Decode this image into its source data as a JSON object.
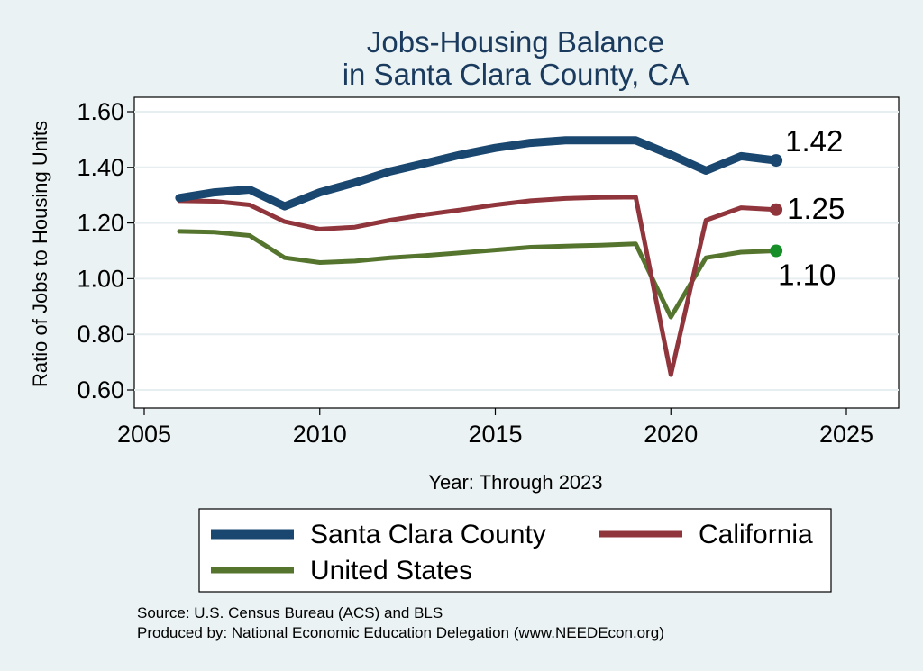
{
  "chart_data": {
    "type": "line",
    "title_lines": [
      "Jobs-Housing Balance",
      "in Santa Clara County, CA"
    ],
    "xlabel": "Year: Through 2023",
    "ylabel": "Ratio of Jobs to Housing Units",
    "xlim": [
      2005,
      2027
    ],
    "ylim": [
      0.55,
      1.65
    ],
    "xticks": [
      2005,
      2010,
      2015,
      2020,
      2025
    ],
    "yticks": [
      0.6,
      0.8,
      1.0,
      1.2,
      1.4,
      1.6
    ],
    "ytick_labels": [
      "0.60",
      "0.80",
      "1.00",
      "1.20",
      "1.40",
      "1.60"
    ],
    "grid": true,
    "x": [
      2006,
      2007,
      2008,
      2009,
      2010,
      2011,
      2012,
      2013,
      2014,
      2015,
      2016,
      2017,
      2018,
      2019,
      2020,
      2021,
      2022,
      2023
    ],
    "series": [
      {
        "name": "Santa Clara County",
        "color": "#1a476f",
        "width": 9,
        "values": [
          1.29,
          1.31,
          1.32,
          1.26,
          1.31,
          1.345,
          1.385,
          1.415,
          1.445,
          1.47,
          1.488,
          1.497,
          1.497,
          1.497,
          1.445,
          1.388,
          1.44,
          1.425
        ],
        "end_label": "1.42"
      },
      {
        "name": "California",
        "color": "#90353b",
        "width": 5,
        "values": [
          1.28,
          1.278,
          1.265,
          1.205,
          1.178,
          1.185,
          1.21,
          1.23,
          1.247,
          1.265,
          1.28,
          1.288,
          1.292,
          1.293,
          0.655,
          1.21,
          1.255,
          1.248
        ],
        "end_label": "1.25"
      },
      {
        "name": "United States",
        "color": "#55752f",
        "width": 5,
        "values": [
          1.17,
          1.167,
          1.155,
          1.075,
          1.058,
          1.063,
          1.075,
          1.083,
          1.093,
          1.103,
          1.113,
          1.117,
          1.12,
          1.125,
          0.862,
          1.075,
          1.095,
          1.1
        ],
        "end_label": "1.10",
        "end_marker_color": "#178f29"
      }
    ],
    "legend": {
      "position": "bottom",
      "entries": [
        "Santa Clara County",
        "California",
        "United States"
      ]
    },
    "source_lines": [
      "Source: U.S. Census Bureau (ACS) and BLS",
      "Produced by: National Economic Education Delegation (www.NEEDEcon.org)"
    ]
  }
}
